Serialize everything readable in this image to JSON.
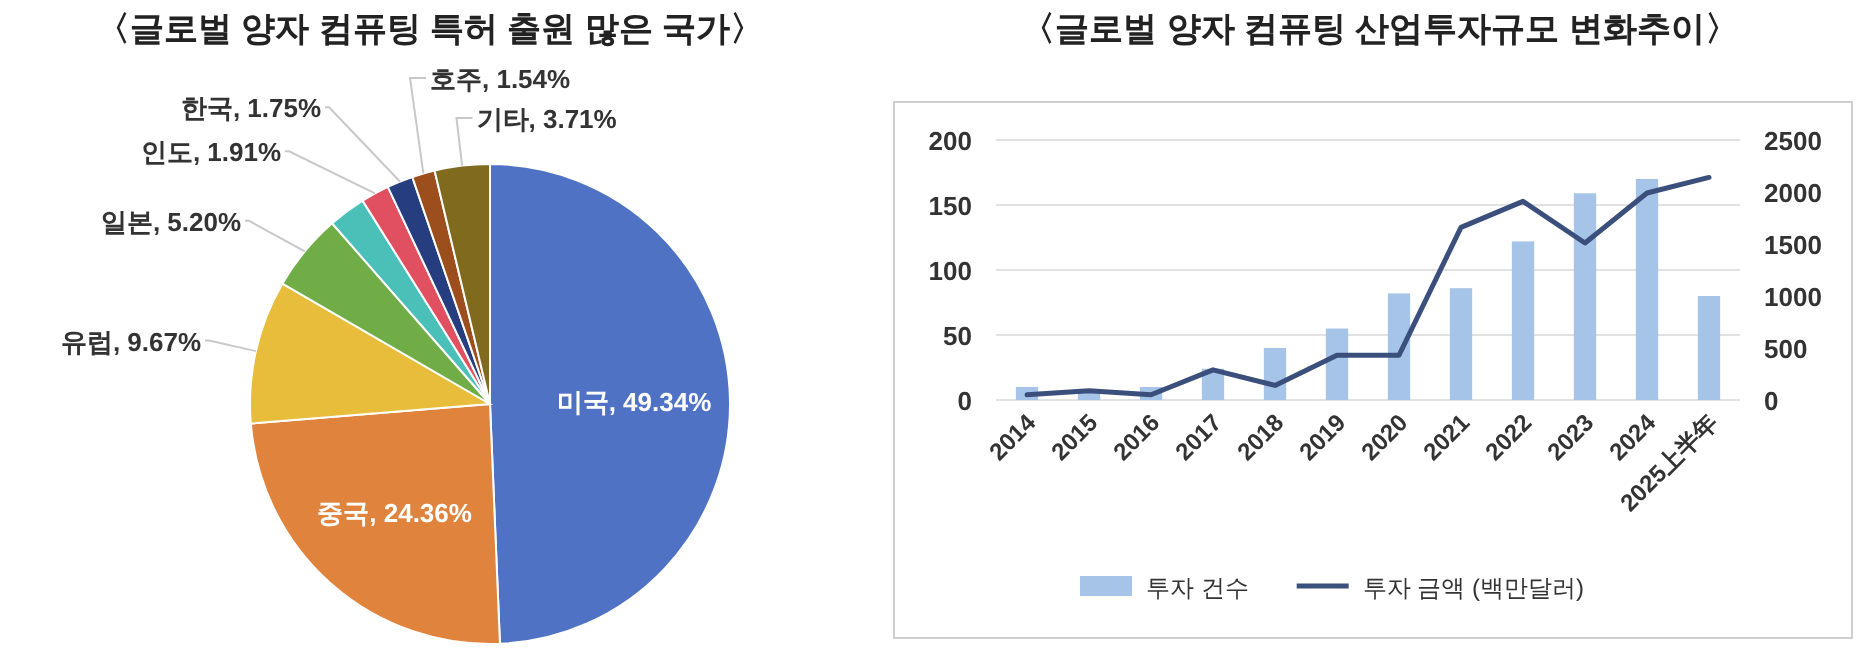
{
  "chart_data": [
    {
      "type": "pie",
      "title": "〈글로벌 양자 컴퓨팅 특허 출원 많은 국가〉",
      "categories": [
        "미국",
        "중국",
        "유럽",
        "일본",
        null,
        "인도",
        "한국",
        "호주",
        "기타"
      ],
      "values": [
        49.34,
        24.36,
        9.67,
        5.2,
        2.52,
        1.91,
        1.75,
        1.54,
        3.71
      ],
      "colors": [
        "#4f72c4",
        "#e0833d",
        "#e8bd3b",
        "#70ad47",
        "#4bc0b8",
        "#e05060",
        "#263d80",
        "#9c4f1c",
        "#7f6a1e"
      ],
      "value_labels": [
        "49.34%",
        "24.36%",
        "9.67%",
        "5.20%",
        null,
        "1.91%",
        "1.75%",
        "1.54%",
        "3.71%"
      ]
    },
    {
      "type": "bar",
      "title": "〈글로벌 양자 컴퓨팅 산업투자규모 변화추이〉",
      "categories": [
        "2014",
        "2015",
        "2016",
        "2017",
        "2018",
        "2019",
        "2020",
        "2021",
        "2022",
        "2023",
        "2024",
        "2025上半年"
      ],
      "series": [
        {
          "name": "투자 건수",
          "type": "bar",
          "color": "#a6c3e8",
          "values": [
            10,
            6,
            10,
            24,
            40,
            55,
            82,
            86,
            122,
            159,
            170,
            80
          ]
        },
        {
          "name": "투자 금액 (백만달러)",
          "type": "line",
          "axis": "y2",
          "color": "#3b4f7c",
          "values": [
            50,
            90,
            50,
            290,
            140,
            430,
            430,
            1660,
            1910,
            1510,
            1990,
            2140
          ]
        }
      ],
      "ylim": [
        0,
        200
      ],
      "yticks": [
        0,
        50,
        100,
        150,
        200
      ],
      "y2lim": [
        0,
        2500
      ],
      "y2ticks": [
        0,
        500,
        1000,
        1500,
        2000,
        2500
      ],
      "grid": "y",
      "legend": "bottom"
    }
  ]
}
